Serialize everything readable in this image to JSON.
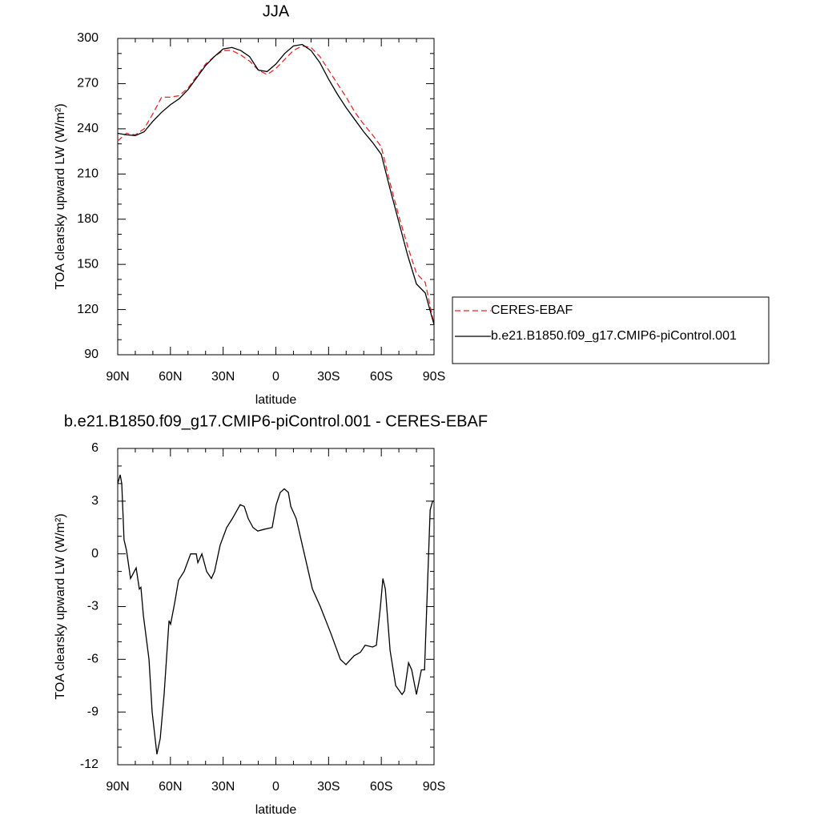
{
  "chart_data": [
    {
      "type": "line",
      "title": "JJA",
      "x_label": "latitude",
      "y_label": "TOA clearsky upward LW (W/m²)",
      "x": [
        90,
        85,
        80,
        75,
        70,
        65,
        60,
        55,
        50,
        45,
        40,
        35,
        30,
        25,
        20,
        15,
        10,
        5,
        0,
        -5,
        -10,
        -15,
        -20,
        -25,
        -30,
        -35,
        -40,
        -45,
        -50,
        -55,
        -60,
        -65,
        -70,
        -75,
        -80,
        -85,
        -90
      ],
      "xlim": [
        90,
        -90
      ],
      "xticks": [
        {
          "value": 90,
          "label": "90N"
        },
        {
          "value": 60,
          "label": "60N"
        },
        {
          "value": 30,
          "label": "30N"
        },
        0,
        {
          "value": -30,
          "label": "30S"
        },
        {
          "value": -60,
          "label": "60S"
        },
        {
          "value": -90,
          "label": "90S"
        }
      ],
      "ylim": [
        90,
        300
      ],
      "yticks": [
        90,
        120,
        150,
        180,
        210,
        240,
        270,
        300
      ],
      "series": [
        {
          "name": "CERES-EBAF",
          "color": "#e8262a",
          "dash": true,
          "values": [
            232,
            237,
            236,
            240,
            250,
            261,
            261,
            262,
            267,
            275,
            283,
            288,
            292,
            292,
            289,
            285,
            279,
            276,
            280,
            286,
            292,
            295,
            294,
            288,
            279,
            270,
            261,
            251,
            243,
            236,
            228,
            204,
            182,
            162,
            144,
            138,
            110
          ]
        },
        {
          "name": "b.e21.B1850.f09_g17.CMIP6-piControl.001",
          "color": "#000000",
          "dash": false,
          "values": [
            237,
            236,
            235.5,
            238,
            245,
            251,
            256,
            260,
            266,
            274,
            282,
            288,
            293,
            294,
            292,
            288,
            279,
            278,
            283,
            290,
            295,
            296,
            292,
            284,
            273,
            263,
            254,
            246,
            238,
            231,
            223,
            200,
            178,
            156,
            137,
            131,
            110
          ]
        }
      ]
    },
    {
      "type": "line",
      "title": "b.e21.B1850.f09_g17.CMIP6-piControl.001 - CERES-EBAF",
      "x_label": "latitude",
      "y_label": "TOA clearsky upward LW (W/m²)",
      "x": [
        90,
        88.6,
        87.7,
        86.4,
        85,
        82.7,
        79.5,
        77.7,
        76.8,
        75.4,
        72.2,
        70.4,
        67.7,
        65.8,
        63.6,
        60.8,
        59.9,
        57.6,
        55.4,
        52.2,
        48.5,
        45.3,
        44.4,
        42.1,
        39.4,
        36.7,
        34.9,
        31.7,
        28,
        24.8,
        20.3,
        18,
        15.7,
        13,
        10.3,
        6.6,
        2.1,
        -0.2,
        -2.5,
        -4.8,
        -7.1,
        -8.5,
        -11.6,
        -16.2,
        -20.8,
        -25.3,
        -31.2,
        -36.7,
        -39.9,
        -44.5,
        -48.1,
        -50.8,
        -55,
        -57.2,
        -59.5,
        -60.9,
        -62.3,
        -65,
        -68.2,
        -71.8,
        -73.2,
        -75.5,
        -77.3,
        -80,
        -82.8,
        -84.6,
        -87.8,
        -89.2,
        -90
      ],
      "xlim": [
        90,
        -90
      ],
      "xticks": [
        {
          "value": 90,
          "label": "90N"
        },
        {
          "value": 60,
          "label": "60N"
        },
        {
          "value": 30,
          "label": "30N"
        },
        0,
        {
          "value": -30,
          "label": "30S"
        },
        {
          "value": -60,
          "label": "60S"
        },
        {
          "value": -90,
          "label": "90S"
        }
      ],
      "ylim": [
        -12,
        6
      ],
      "yticks": [
        -12,
        -9,
        -6,
        -3,
        0,
        3,
        6
      ],
      "series": [
        {
          "color": "#000000",
          "values": [
            4.0,
            4.5,
            4.0,
            0.8,
            0.2,
            -1.4,
            -0.8,
            -2.0,
            -1.9,
            -3.5,
            -6,
            -9,
            -11.4,
            -10.5,
            -8,
            -3.8,
            -4.0,
            -2.8,
            -1.5,
            -1.0,
            0,
            0,
            -0.5,
            0,
            -1.0,
            -1.4,
            -1.0,
            0.5,
            1.5,
            2.0,
            2.8,
            2.7,
            2.0,
            1.5,
            1.3,
            1.4,
            1.5,
            2.8,
            3.5,
            3.7,
            3.5,
            2.7,
            2.0,
            0,
            -2,
            -3,
            -4.5,
            -6,
            -6.3,
            -5.8,
            -5.6,
            -5.2,
            -5.3,
            -5.2,
            -3,
            -1.4,
            -2.0,
            -5.5,
            -7.5,
            -8.0,
            -7.8,
            -6.2,
            -6.6,
            -8.0,
            -6.6,
            -6.6,
            2.5,
            3.0,
            3.0
          ]
        }
      ]
    }
  ]
}
